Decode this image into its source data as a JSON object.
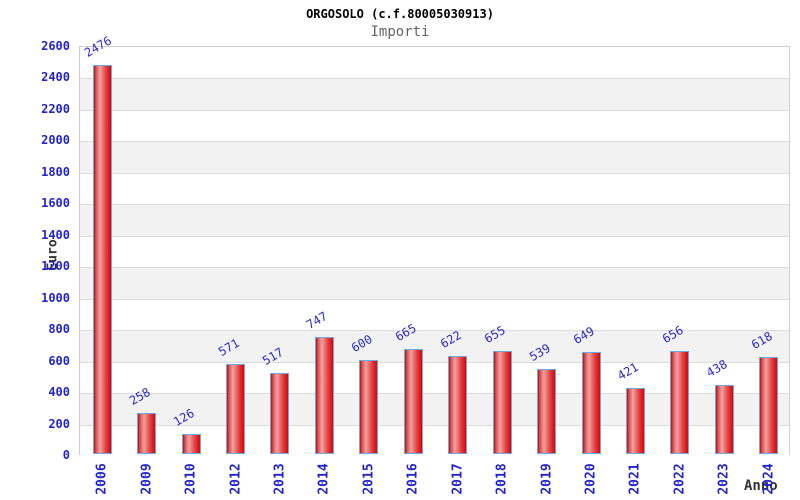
{
  "chart_data": {
    "type": "bar",
    "title": "ORGOSOLO (c.f.80005030913)",
    "subtitle": "Importi",
    "xlabel": "Anno",
    "ylabel": "Euro",
    "categories": [
      "2006",
      "2009",
      "2010",
      "2012",
      "2013",
      "2014",
      "2015",
      "2016",
      "2017",
      "2018",
      "2019",
      "2020",
      "2021",
      "2022",
      "2023",
      "2024"
    ],
    "values": [
      2476,
      258,
      126,
      571,
      517,
      747,
      600,
      665,
      622,
      655,
      539,
      649,
      421,
      656,
      438,
      618
    ],
    "ylim": [
      0,
      2600
    ],
    "ytick_step": 200,
    "grid": "horizontal-lines-with-alternating-bands",
    "legend": "none",
    "colors": {
      "tick_label_blue": "#2323cc",
      "value_label_blue": "#2a2ac4",
      "axis_title_gray": "#333333",
      "title_black": "#000000",
      "subtitle_gray": "#666666",
      "band_gray": "#f2f2f2",
      "band_white": "#ffffff",
      "gridline": "#dcdcdc",
      "plot_border": "#cfcfcf",
      "bar_border_blue": "#6fa7e0",
      "bar_red_dark": "#b81111",
      "bar_red_light": "#f2a2a2",
      "bar_red_bright": "#e81717"
    }
  }
}
